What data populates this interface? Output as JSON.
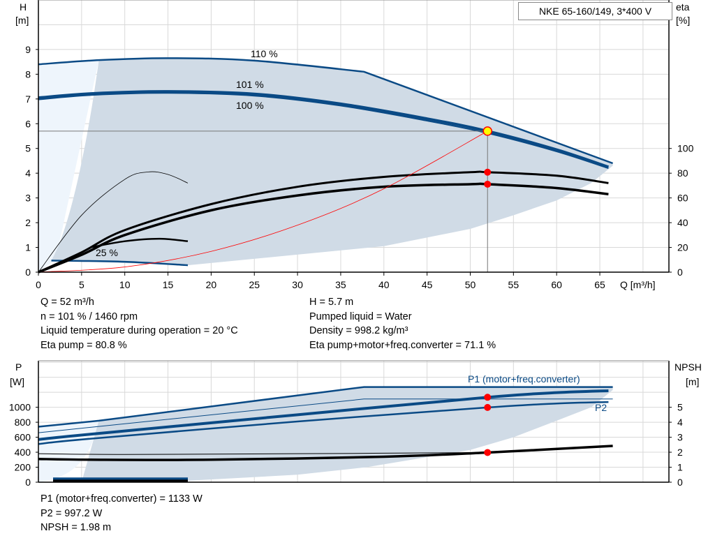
{
  "title": "NKE 65-160/149, 3*400 V",
  "colors": {
    "curve": "#0a4a85",
    "fill": "#d0dbe6",
    "fill_light": "#eef5fc",
    "duty": "#ff0000",
    "grid": "#d8d8d8"
  },
  "chart_data": [
    {
      "type": "line",
      "name": "head-efficiency",
      "xlabel": "Q [m³/h]",
      "ylabel_left": "H",
      "ylabel_left_unit": "[m]",
      "ylabel_right": "eta",
      "ylabel_right_unit": "[%]",
      "xlim": [
        0,
        73
      ],
      "ylim": [
        0,
        11
      ],
      "y2lim": [
        0,
        220
      ],
      "grid": true,
      "xticks": [
        "0",
        "5",
        "10",
        "15",
        "20",
        "25",
        "30",
        "35",
        "40",
        "45",
        "50",
        "55",
        "60",
        "65"
      ],
      "yticks": [
        "0",
        "1",
        "2",
        "3",
        "4",
        "5",
        "6",
        "7",
        "8",
        "9"
      ],
      "y2ticks": [
        "0",
        "20",
        "40",
        "60",
        "80",
        "100"
      ],
      "curve_labels": [
        "110 %",
        "101 %",
        "100 %",
        "25 %"
      ],
      "series": [
        {
          "name": "110 %",
          "axis": "H",
          "points": [
            [
              0,
              8.4
            ],
            [
              7,
              8.57
            ],
            [
              15,
              8.65
            ],
            [
              25,
              8.55
            ],
            [
              37.7,
              8.1
            ],
            [
              66.5,
              4.4
            ]
          ]
        },
        {
          "name": "101 %",
          "axis": "H",
          "points": [
            [
              0,
              7.05
            ],
            [
              6.3,
              7.22
            ],
            [
              15,
              7.3
            ],
            [
              25,
              7.2
            ],
            [
              35,
              6.8
            ],
            [
              45,
              6.2
            ],
            [
              52,
              5.7
            ],
            [
              60,
              4.95
            ],
            [
              66,
              4.25
            ]
          ]
        },
        {
          "name": "100 %",
          "axis": "H",
          "points": [
            [
              0,
              6.98
            ],
            [
              6.3,
              7.16
            ],
            [
              15,
              7.24
            ],
            [
              25,
              7.13
            ],
            [
              35,
              6.73
            ],
            [
              45,
              6.12
            ],
            [
              52,
              5.62
            ],
            [
              60,
              4.88
            ],
            [
              66,
              4.2
            ]
          ]
        },
        {
          "name": "25 %",
          "axis": "H",
          "points": [
            [
              1.5,
              0.47
            ],
            [
              10,
              0.42
            ],
            [
              17.3,
              0.28
            ]
          ]
        },
        {
          "axis": "eta",
          "points": [
            [
              0,
              0
            ],
            [
              5,
              16
            ],
            [
              10,
              34
            ],
            [
              20,
              55
            ],
            [
              30,
              69
            ],
            [
              40,
              77
            ],
            [
              50,
              80.8
            ],
            [
              52,
              80.8
            ],
            [
              60,
              78
            ],
            [
              66,
              72
            ]
          ]
        },
        {
          "axis": "eta",
          "points": [
            [
              0,
              0
            ],
            [
              5,
              14
            ],
            [
              10,
              30
            ],
            [
              20,
              50
            ],
            [
              30,
              62
            ],
            [
              40,
              69
            ],
            [
              50,
              71.1
            ],
            [
              52,
              71.1
            ],
            [
              60,
              68
            ],
            [
              66,
              63
            ]
          ]
        },
        {
          "axis": "eta",
          "points": [
            [
              0,
              0
            ],
            [
              5,
              46
            ],
            [
              10,
              75
            ],
            [
              12.7,
              81
            ],
            [
              15,
              79
            ],
            [
              17.3,
              72
            ]
          ]
        },
        {
          "axis": "eta",
          "points": [
            [
              6,
              20
            ],
            [
              10,
              25
            ],
            [
              14,
              27
            ],
            [
              17.3,
              25
            ]
          ]
        },
        {
          "name": "system",
          "axis": "H",
          "points": [
            [
              0,
              0
            ],
            [
              10,
              0.21
            ],
            [
              20,
              0.84
            ],
            [
              30,
              1.9
            ],
            [
              40,
              3.37
            ],
            [
              52,
              5.7
            ]
          ]
        }
      ],
      "duty_point": {
        "Q": 52,
        "H": 5.7,
        "eta_pump": 80.8,
        "eta_total": 71.1
      }
    },
    {
      "type": "line",
      "name": "power-npsh",
      "ylabel_left": "P",
      "ylabel_left_unit": "[W]",
      "ylabel_right": "NPSH",
      "ylabel_right_unit": "[m]",
      "xlim": [
        0,
        73
      ],
      "ylim": [
        0,
        1620
      ],
      "y2lim": [
        0,
        8.1
      ],
      "grid": true,
      "yticks": [
        "0",
        "200",
        "400",
        "600",
        "800",
        "1000"
      ],
      "y2ticks": [
        "0",
        "1",
        "2",
        "3",
        "4",
        "5"
      ],
      "curve_labels": [
        "P1 (motor+freq.converter)",
        "P2"
      ],
      "series": [
        {
          "axis": "P",
          "points": [
            [
              0,
              740
            ],
            [
              7,
              820
            ],
            [
              37.7,
              1270
            ],
            [
              66.5,
              1270
            ]
          ]
        },
        {
          "axis": "P",
          "points": [
            [
              0,
              660
            ],
            [
              37.7,
              1110
            ],
            [
              66.5,
              1110
            ]
          ]
        },
        {
          "name": "P1 (motor+freq.converter)",
          "axis": "P",
          "points": [
            [
              0,
              570
            ],
            [
              6,
              640
            ],
            [
              30,
              900
            ],
            [
              52,
              1133
            ],
            [
              60,
              1195
            ],
            [
              66,
              1220
            ]
          ]
        },
        {
          "name": "P2",
          "axis": "P",
          "points": [
            [
              0,
              510
            ],
            [
              6,
              580
            ],
            [
              30,
              810
            ],
            [
              52,
              997
            ],
            [
              60,
              1050
            ],
            [
              66,
              1070
            ]
          ]
        },
        {
          "axis": "NPSH",
          "points": [
            [
              0,
              1.9
            ],
            [
              10,
              1.85
            ],
            [
              30,
              1.9
            ],
            [
              52,
              1.98
            ]
          ]
        },
        {
          "axis": "NPSH",
          "points": [
            [
              0,
              1.55
            ],
            [
              6,
              1.5
            ],
            [
              20,
              1.5
            ],
            [
              40,
              1.7
            ],
            [
              52,
              1.98
            ],
            [
              66.5,
              2.42
            ]
          ]
        },
        {
          "axis": "P",
          "points": [
            [
              1.7,
              45
            ],
            [
              17.3,
              45
            ]
          ]
        },
        {
          "axis": "P",
          "points": [
            [
              1.7,
              15
            ],
            [
              17.3,
              15
            ]
          ]
        }
      ],
      "duty_points": {
        "P1": 1133,
        "P2": 997.2,
        "NPSH": 1.98
      }
    }
  ],
  "info_top": {
    "left": [
      "Q = 52 m³/h",
      "n = 101 % / 1460 rpm",
      "Liquid temperature during operation = 20 °C",
      "Eta pump = 80.8 %"
    ],
    "right": [
      "H = 5.7 m",
      "Pumped liquid = Water",
      "Density = 998.2 kg/m³",
      "Eta pump+motor+freq.converter = 71.1 %"
    ]
  },
  "info_bottom": [
    "P1 (motor+freq.converter) = 1133 W",
    "P2 = 997.2 W",
    "NPSH = 1.98 m"
  ]
}
